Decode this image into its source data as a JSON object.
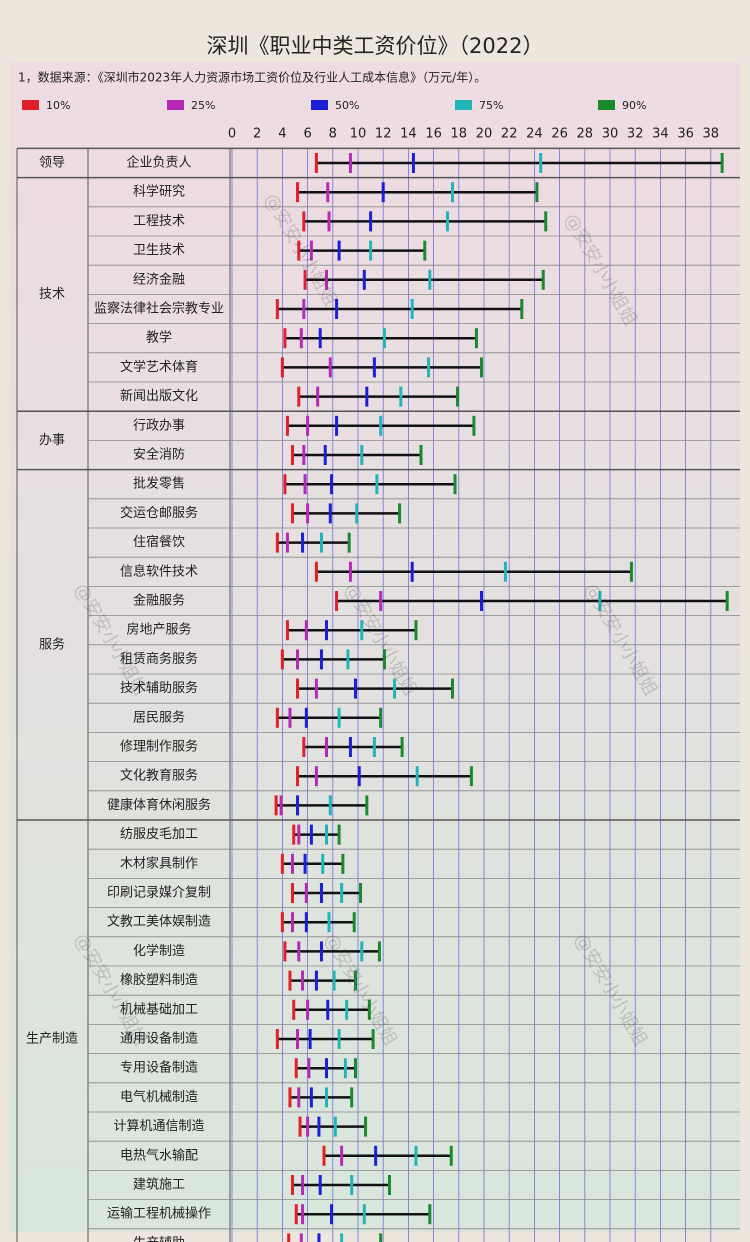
{
  "chart_data": {
    "type": "percentile-range",
    "title": "深圳《职业中类工资价位》（2022）",
    "subtitle": "1，数据来源：《深圳市2023年人力资源市场工资价位及行业人工成本信息》（万元/年）。",
    "watermark": "@安安小小姐姐",
    "xlim": [
      0,
      40
    ],
    "xticks": [
      0,
      2,
      4,
      6,
      8,
      10,
      12,
      14,
      16,
      18,
      20,
      22,
      24,
      26,
      28,
      30,
      32,
      34,
      36,
      38
    ],
    "grid": true,
    "groups": [
      {
        "name": "领导",
        "categories": [
          "企业负责人"
        ]
      },
      {
        "name": "技术",
        "categories": [
          "科学研究",
          "工程技术",
          "卫生技术",
          "经济金融",
          "监察法律社会宗教专业",
          "教学",
          "文学艺术体育",
          "新闻出版文化"
        ]
      },
      {
        "name": "办事",
        "categories": [
          "行政办事",
          "安全消防"
        ]
      },
      {
        "name": "服务",
        "categories": [
          "批发零售",
          "交运仓邮服务",
          "住宿餐饮",
          "信息软件技术",
          "金融服务",
          "房地产服务",
          "租赁商务服务",
          "技术辅助服务",
          "居民服务",
          "修理制作服务",
          "文化教育服务",
          "健康体育休闲服务"
        ]
      },
      {
        "name": "生产制造",
        "categories": [
          "纺服皮毛加工",
          "木材家具制作",
          "印刷记录媒介复制",
          "文教工美体娱制造",
          "化学制造",
          "橡胶塑料制造",
          "机械基础加工",
          "通用设备制造",
          "专用设备制造",
          "电气机械制造",
          "计算机通信制造",
          "电热气水输配",
          "建筑施工",
          "运输工程机械操作",
          "生产辅助"
        ]
      }
    ],
    "series": [
      {
        "name": "10%",
        "color": "#e0202a",
        "values": [
          6.7,
          5.2,
          5.7,
          5.3,
          5.8,
          3.6,
          4.2,
          4.0,
          5.3,
          4.4,
          4.8,
          4.2,
          4.8,
          3.6,
          6.7,
          8.3,
          4.4,
          4.0,
          5.2,
          3.6,
          5.7,
          5.2,
          3.5,
          4.9,
          4.0,
          4.8,
          4.0,
          4.2,
          4.6,
          4.9,
          3.6,
          5.1,
          4.6,
          5.4,
          7.3,
          4.8,
          5.1,
          4.5
        ]
      },
      {
        "name": "25%",
        "color": "#b52ab5",
        "values": [
          9.4,
          7.6,
          7.7,
          6.3,
          7.5,
          5.7,
          5.5,
          7.8,
          6.8,
          6.0,
          5.7,
          5.8,
          6.0,
          4.4,
          9.4,
          11.8,
          5.9,
          5.2,
          6.7,
          4.6,
          7.5,
          6.7,
          3.9,
          5.3,
          4.8,
          5.9,
          4.8,
          5.3,
          5.6,
          6.0,
          5.2,
          6.1,
          5.3,
          6.0,
          8.7,
          5.6,
          5.6,
          5.5
        ]
      },
      {
        "name": "50%",
        "color": "#1c1fd6",
        "values": [
          14.4,
          12.0,
          11.0,
          8.5,
          10.5,
          8.3,
          7.0,
          11.3,
          10.7,
          8.3,
          7.4,
          7.9,
          7.8,
          5.6,
          14.3,
          19.8,
          7.5,
          7.1,
          9.8,
          5.9,
          9.4,
          10.1,
          5.2,
          6.3,
          5.8,
          7.1,
          5.9,
          7.1,
          6.7,
          7.6,
          6.2,
          7.5,
          6.3,
          6.9,
          11.4,
          7.0,
          7.9,
          6.9
        ]
      },
      {
        "name": "75%",
        "color": "#22b5b8",
        "values": [
          24.5,
          17.5,
          17.1,
          11.0,
          15.7,
          14.3,
          12.1,
          15.6,
          13.4,
          11.8,
          10.3,
          11.5,
          9.9,
          7.1,
          21.7,
          29.2,
          10.3,
          9.2,
          12.9,
          8.5,
          11.3,
          14.7,
          7.8,
          7.5,
          7.2,
          8.7,
          7.7,
          10.3,
          8.1,
          9.1,
          8.5,
          9.0,
          7.5,
          8.2,
          14.6,
          9.5,
          10.5,
          8.7
        ]
      },
      {
        "name": "90%",
        "color": "#1b8a2e",
        "values": [
          38.9,
          24.2,
          24.9,
          15.3,
          24.7,
          23.0,
          19.4,
          19.8,
          17.9,
          19.2,
          15.0,
          17.7,
          13.3,
          9.3,
          31.7,
          39.3,
          14.6,
          12.1,
          17.5,
          11.8,
          13.5,
          19.0,
          10.7,
          8.5,
          8.8,
          10.2,
          9.7,
          11.7,
          9.8,
          10.9,
          11.2,
          9.8,
          9.5,
          10.6,
          17.4,
          12.5,
          15.7,
          11.8
        ]
      }
    ]
  }
}
